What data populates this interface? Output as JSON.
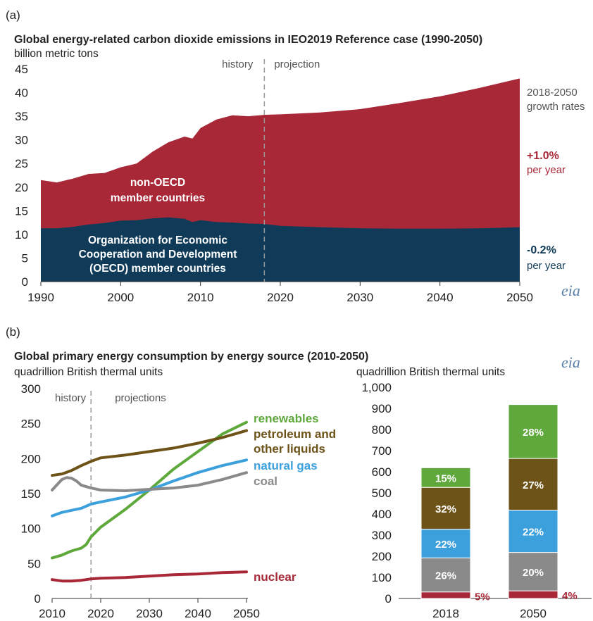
{
  "panel_a": {
    "label": "(a)"
  },
  "panel_b": {
    "label": "(b)"
  },
  "logo_text": "eia",
  "colors": {
    "non_oecd": "#a82838",
    "oecd": "#0f3a58",
    "renewables": "#5fa83c",
    "petroleum": "#6e5318",
    "natural_gas": "#3ca0dc",
    "coal": "#8a8a8a",
    "nuclear": "#a82838",
    "history_line": "#999999"
  },
  "chart_data": [
    {
      "type": "area",
      "title": "Global energy-related carbon dioxide emissions in IEO2019 Reference case (1990-2050)",
      "ylabel": "billion metric tons",
      "ylim": [
        0,
        45
      ],
      "xlim": [
        1990,
        2050
      ],
      "yticks": [
        "0",
        "5",
        "10",
        "15",
        "20",
        "25",
        "30",
        "35",
        "40",
        "45"
      ],
      "xticks": [
        "1990",
        "2000",
        "2010",
        "2020",
        "2030",
        "2040",
        "2050"
      ],
      "history_label": "history",
      "projection_label": "projection",
      "divider_year": 2018,
      "growth_header": [
        "2018-2050",
        "growth rates"
      ],
      "x": [
        1990,
        1992,
        1994,
        1996,
        1998,
        2000,
        2002,
        2004,
        2006,
        2008,
        2009,
        2010,
        2012,
        2014,
        2016,
        2018,
        2020,
        2025,
        2030,
        2035,
        2040,
        2045,
        2050
      ],
      "series": [
        {
          "name": "Organization for Economic Cooperation and Development (OECD) member countries",
          "label_lines": [
            "Organization for Economic",
            "Cooperation and Development",
            "(OECD) member countries"
          ],
          "growth_value": "-0.2%",
          "growth_unit": "per year",
          "values": [
            11.3,
            11.3,
            11.6,
            12.1,
            12.4,
            12.9,
            13.0,
            13.4,
            13.6,
            13.3,
            12.6,
            13.0,
            12.6,
            12.5,
            12.3,
            12.2,
            11.8,
            11.5,
            11.3,
            11.2,
            11.2,
            11.3,
            11.5
          ]
        },
        {
          "name": "non-OECD member countries",
          "label_lines": [
            "non-OECD",
            "member countries"
          ],
          "growth_value": "+1.0%",
          "growth_unit": "per year",
          "values": [
            21.5,
            21.0,
            21.8,
            22.8,
            23.0,
            24.2,
            25.0,
            27.5,
            29.5,
            30.7,
            30.3,
            32.5,
            34.3,
            35.2,
            35.0,
            35.3,
            35.4,
            35.8,
            36.5,
            37.8,
            39.2,
            41.0,
            43.0
          ]
        }
      ]
    },
    {
      "type": "line",
      "title": "Global primary energy consumption by energy source (2010-2050)",
      "ylabel": "quadrillion British thermal units",
      "ylim": [
        0,
        300
      ],
      "xlim": [
        2010,
        2050
      ],
      "yticks": [
        "0",
        "50",
        "100",
        "150",
        "200",
        "250",
        "300"
      ],
      "xticks": [
        "2010",
        "2020",
        "2030",
        "2040",
        "2050"
      ],
      "history_label": "history",
      "projection_label": "projections",
      "divider_year": 2018,
      "series": [
        {
          "name": "renewables",
          "x": [
            2010,
            2012,
            2014,
            2016,
            2017,
            2018,
            2020,
            2025,
            2030,
            2035,
            2040,
            2045,
            2050
          ],
          "values": [
            58,
            62,
            68,
            72,
            77,
            88,
            102,
            127,
            155,
            185,
            210,
            235,
            252
          ]
        },
        {
          "name": "petroleum and other liquids",
          "label_lines": [
            "petroleum and",
            "other liquids"
          ],
          "x": [
            2010,
            2012,
            2014,
            2016,
            2018,
            2020,
            2025,
            2030,
            2035,
            2040,
            2045,
            2050
          ],
          "values": [
            176,
            178,
            183,
            190,
            196,
            201,
            205,
            210,
            215,
            222,
            230,
            240
          ]
        },
        {
          "name": "natural gas",
          "x": [
            2010,
            2012,
            2014,
            2016,
            2018,
            2020,
            2025,
            2030,
            2035,
            2040,
            2045,
            2050
          ],
          "values": [
            118,
            123,
            126,
            129,
            135,
            138,
            145,
            155,
            168,
            180,
            190,
            198
          ]
        },
        {
          "name": "coal",
          "x": [
            2010,
            2012,
            2013,
            2014,
            2015,
            2016,
            2018,
            2020,
            2025,
            2030,
            2035,
            2040,
            2045,
            2050
          ],
          "values": [
            155,
            170,
            173,
            172,
            168,
            162,
            158,
            155,
            154,
            156,
            158,
            162,
            170,
            180
          ]
        },
        {
          "name": "nuclear",
          "x": [
            2010,
            2012,
            2014,
            2016,
            2018,
            2020,
            2025,
            2030,
            2035,
            2040,
            2045,
            2050
          ],
          "values": [
            27,
            25,
            25,
            26,
            28,
            29,
            30,
            32,
            34,
            35,
            37,
            38
          ]
        }
      ]
    },
    {
      "type": "bar",
      "stacked": true,
      "ylabel": "quadrillion British thermal units",
      "ylim": [
        0,
        1000
      ],
      "yticks": [
        "0",
        "100",
        "200",
        "300",
        "400",
        "500",
        "600",
        "700",
        "800",
        "900",
        "1,000"
      ],
      "categories": [
        "2018",
        "2050"
      ],
      "series": [
        {
          "name": "nuclear",
          "values": [
            31,
            36
          ],
          "labels": [
            "5%",
            "4%"
          ]
        },
        {
          "name": "coal",
          "values": [
            161,
            182
          ],
          "labels": [
            "26%",
            "20%"
          ]
        },
        {
          "name": "natural gas",
          "values": [
            136,
            200
          ],
          "labels": [
            "22%",
            "22%"
          ]
        },
        {
          "name": "petroleum and other liquids",
          "values": [
            198,
            245
          ],
          "labels": [
            "32%",
            "27%"
          ]
        },
        {
          "name": "renewables",
          "values": [
            93,
            255
          ],
          "labels": [
            "15%",
            "28%"
          ]
        }
      ]
    }
  ]
}
